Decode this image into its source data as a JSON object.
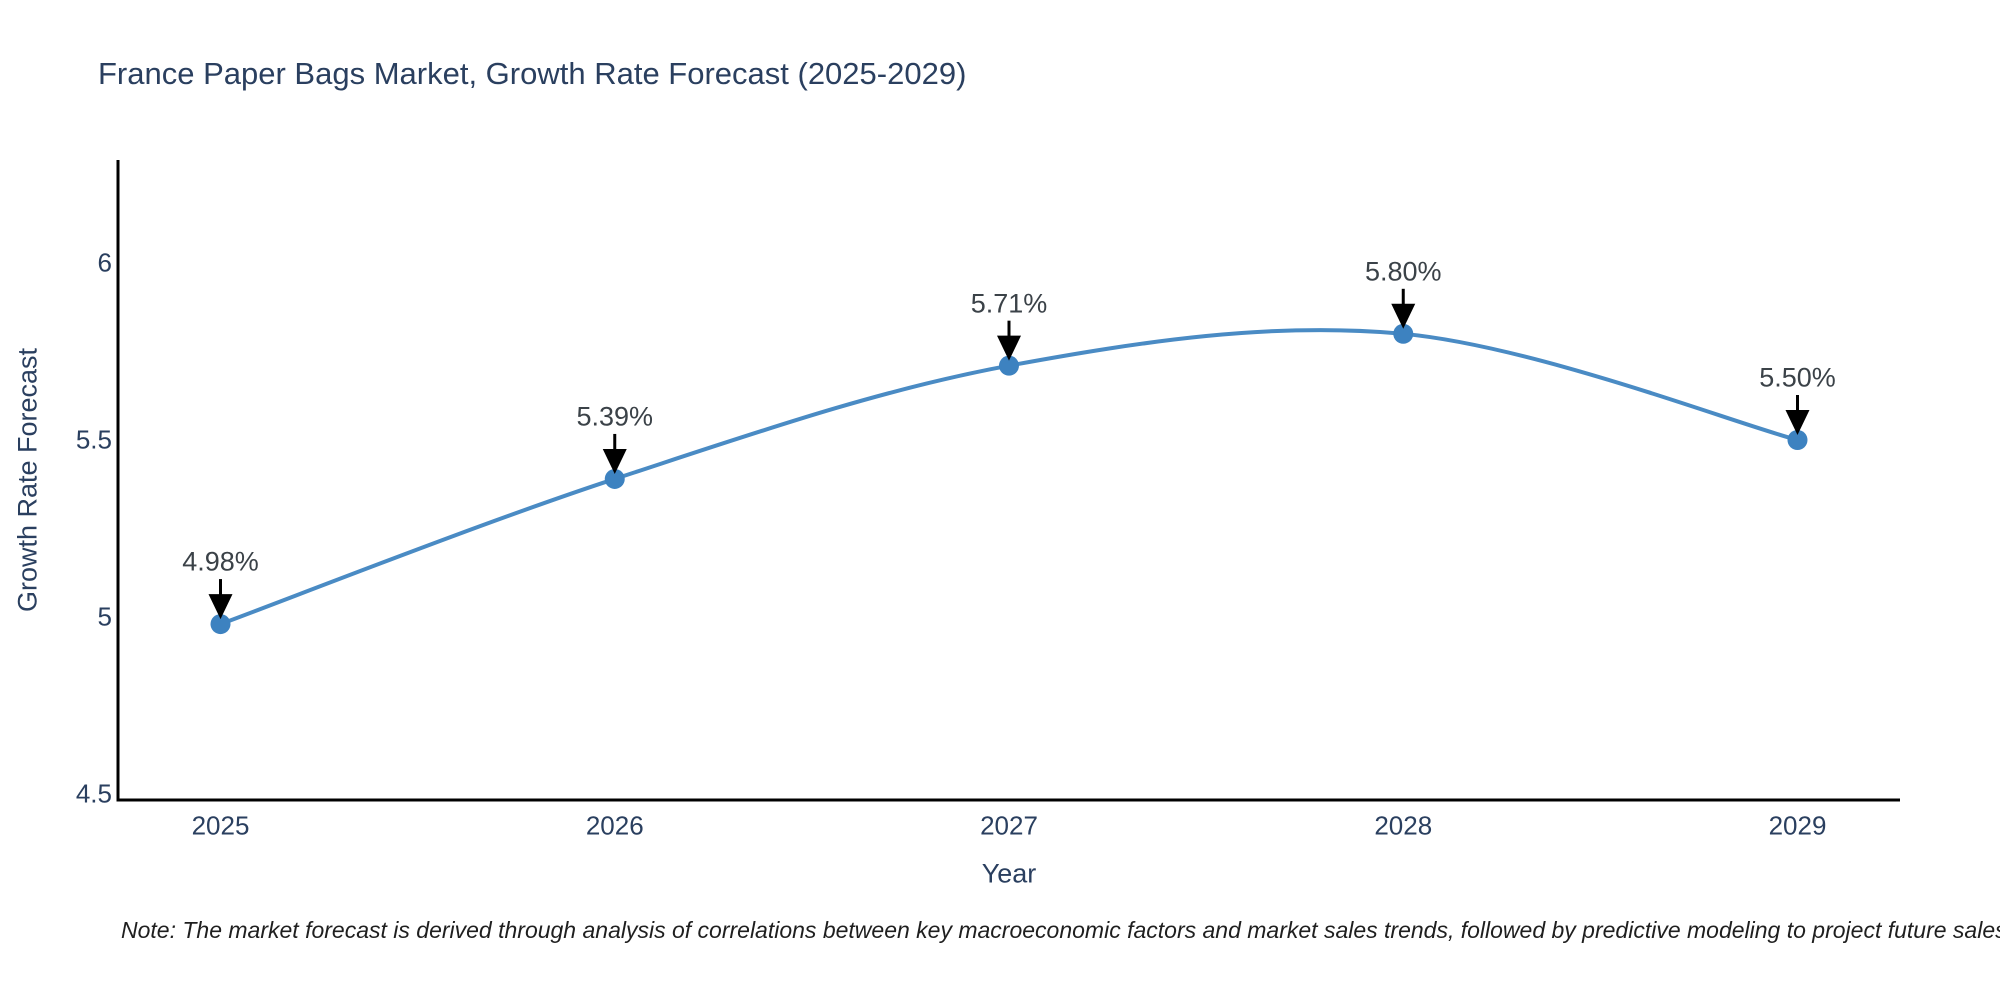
{
  "title": "France Paper Bags Market, Growth Rate Forecast (2025-2029)",
  "note": "Note: The market forecast is derived through analysis of correlations between key macroeconomic factors and market sales trends, followed by predictive modeling to project future sales",
  "chart_data": {
    "type": "line",
    "title": "France Paper Bags Market, Growth Rate Forecast (2025-2029)",
    "xlabel": "Year",
    "ylabel": "Growth Rate Forecast",
    "x": [
      2025,
      2026,
      2027,
      2028,
      2029
    ],
    "values": [
      4.98,
      5.39,
      5.71,
      5.8,
      5.5
    ],
    "point_labels": [
      "4.98%",
      "5.39%",
      "5.71%",
      "5.80%",
      "5.50%"
    ],
    "x_tick_labels": [
      "2025",
      "2026",
      "2027",
      "2028",
      "2029"
    ],
    "y_tick_values": [
      4.5,
      5,
      5.5,
      6
    ],
    "y_tick_labels": [
      "4.5",
      "5",
      "5.5",
      "6"
    ],
    "xlim": [
      2024.74,
      2029.26
    ],
    "ylim": [
      4.483,
      6.291
    ],
    "grid": false,
    "legend": "none",
    "line_shape": "spline",
    "line_color": "#4a8bc4",
    "marker_color": "#3d82c0",
    "axis_color": "#000000",
    "arrow_color": "#000000",
    "title_color": "#2a3f5f",
    "annotation_color": "#3b4248",
    "note_color": "#1f1f1f"
  }
}
